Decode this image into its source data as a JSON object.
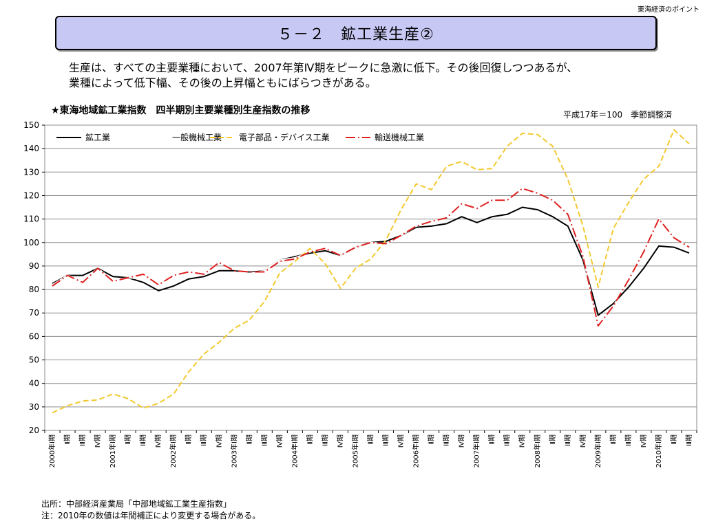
{
  "header": {
    "corner_label": "東海経済のポイント",
    "title": "５－２　鉱工業生産②"
  },
  "lead": {
    "line1": "生産は、すべての主要業種において、2007年第Ⅳ期をピークに急激に低下。その後回復しつつあるが、",
    "line2": "業種によって低下幅、その後の上昇幅ともにばらつきがある。"
  },
  "chart_heading": "★東海地域鉱工業指数　四半期別主要業種別生産指数の推移",
  "chart_note": "平成17年＝100　季節調整済",
  "footer": {
    "source": "出所：中部経済産業局「中部地域鉱工業生産指数」",
    "note": "注：2010年の数値は年間補正により変更する場合がある。"
  },
  "chart_data": {
    "type": "line",
    "ylim": [
      20,
      150
    ],
    "yticks": [
      20,
      30,
      40,
      50,
      60,
      70,
      80,
      90,
      100,
      110,
      120,
      130,
      140,
      150
    ],
    "grid": true,
    "legend": "top-left",
    "categories": [
      "2000年Ⅰ期",
      "Ⅱ期",
      "Ⅲ期",
      "Ⅳ期",
      "2001年Ⅰ期",
      "Ⅱ期",
      "Ⅲ期",
      "Ⅳ期",
      "2002年Ⅰ期",
      "Ⅱ期",
      "Ⅲ期",
      "Ⅳ期",
      "2003年Ⅰ期",
      "Ⅱ期",
      "Ⅲ期",
      "Ⅳ期",
      "2004年Ⅰ期",
      "Ⅱ期",
      "Ⅲ期",
      "Ⅳ期",
      "2005年Ⅰ期",
      "Ⅱ期",
      "Ⅲ期",
      "Ⅳ期",
      "2006年Ⅰ期",
      "Ⅱ期",
      "Ⅲ期",
      "Ⅳ期",
      "2007年Ⅰ期",
      "Ⅱ期",
      "Ⅲ期",
      "Ⅳ期",
      "2008年Ⅰ期",
      "Ⅱ期",
      "Ⅲ期",
      "Ⅳ期",
      "2009年Ⅰ期",
      "Ⅱ期",
      "Ⅲ期",
      "Ⅳ期",
      "2010年Ⅰ期",
      "Ⅱ期",
      "Ⅲ期"
    ],
    "series": [
      {
        "name": "鉱工業",
        "color": "#000000",
        "dash": "solid",
        "values": [
          82.5,
          86,
          86,
          89,
          85.5,
          85,
          83,
          79.5,
          81.5,
          84.5,
          85.5,
          88,
          88,
          87.5,
          88.5,
          92.5,
          94,
          95.5,
          96.5,
          94.5,
          98,
          100,
          100.5,
          103,
          106.5,
          107,
          108,
          111,
          108.5,
          111,
          112,
          115,
          114,
          111,
          107,
          92.5,
          69,
          74,
          81,
          89,
          98.5,
          98,
          95.5
        ]
      },
      {
        "name": "一般機械工業",
        "color": "#ffffff",
        "dash": "solid",
        "values": [
          82,
          86,
          84,
          89,
          84,
          85,
          84.5,
          82,
          86,
          88,
          87,
          91.5,
          88.5,
          88,
          88.5,
          92.5,
          93.5,
          96,
          97.5,
          94.5,
          98,
          100,
          99.5,
          103,
          107,
          109,
          110.5,
          116,
          114.5,
          118,
          118,
          123,
          121,
          118,
          112,
          94,
          64.5,
          73,
          84,
          96,
          110,
          102,
          98
        ]
      },
      {
        "name": "電子部品・デバイス工業",
        "color": "#f3c92f",
        "dash": "8,4",
        "values": [
          27.5,
          30.5,
          32.5,
          33,
          35.5,
          33.5,
          29.5,
          31.5,
          35.5,
          45,
          52.5,
          57.5,
          63.5,
          67,
          75,
          87,
          92,
          97.5,
          91,
          80.5,
          89,
          93,
          101,
          114,
          125,
          122.5,
          132.5,
          134.5,
          131,
          131.5,
          141,
          146.5,
          146,
          141,
          127,
          107,
          81,
          106,
          117,
          127,
          132.5,
          148,
          142
        ]
      },
      {
        "name": "輸送機械工業",
        "color": "#e02020",
        "dash": "14,4,2,4",
        "values": [
          81.5,
          86,
          83,
          89,
          83.5,
          85,
          86.5,
          82,
          86,
          87.5,
          86.5,
          91.5,
          88,
          87.5,
          87.5,
          92,
          93,
          96,
          97.5,
          94.5,
          98,
          100,
          99.5,
          103,
          107,
          109,
          110.5,
          116.5,
          114.5,
          118,
          118,
          123,
          121,
          118,
          112,
          94,
          64.5,
          73,
          84,
          96,
          110,
          102,
          98
        ]
      }
    ]
  }
}
